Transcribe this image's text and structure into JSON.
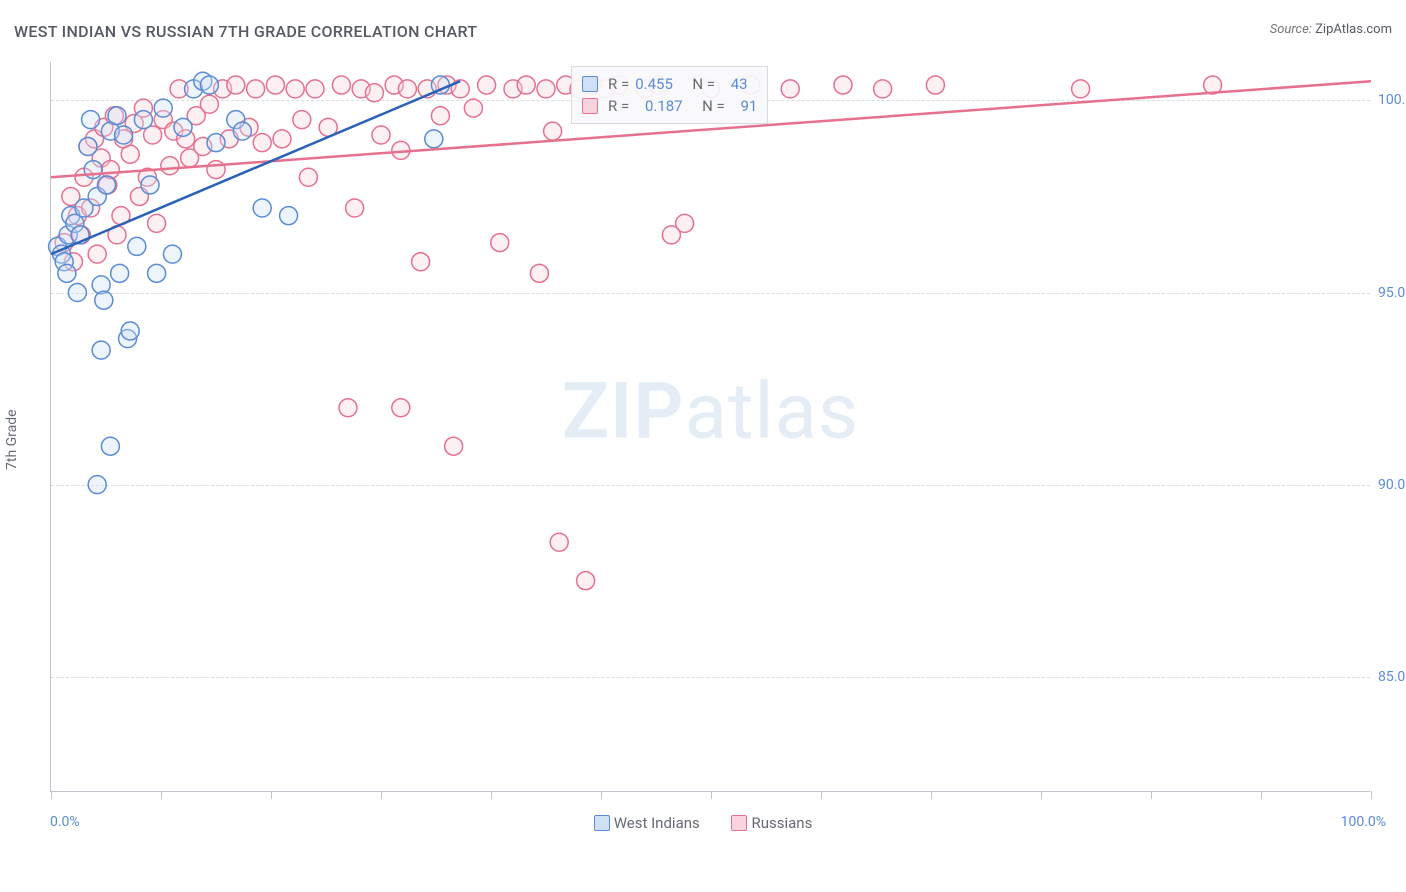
{
  "title": "WEST INDIAN VS RUSSIAN 7TH GRADE CORRELATION CHART",
  "source_label": "Source:",
  "source_value": "ZipAtlas.com",
  "ylabel": "7th Grade",
  "watermark_zip": "ZIP",
  "watermark_atlas": "atlas",
  "chart": {
    "type": "scatter",
    "background_color": "#ffffff",
    "grid_color": "#d8dbe0",
    "axis_color": "#bfc4cc",
    "xlim": [
      0,
      100
    ],
    "ylim": [
      82,
      101
    ],
    "x_tick_label_min": "0.0%",
    "x_tick_label_max": "100.0%",
    "x_tick_positions": [
      0,
      8.3,
      16.7,
      25,
      33.3,
      41.7,
      50,
      58.3,
      66.7,
      75,
      83.3,
      91.7,
      100
    ],
    "y_ticks": [
      {
        "value": 85,
        "label": "85.0%"
      },
      {
        "value": 90,
        "label": "90.0%"
      },
      {
        "value": 95,
        "label": "95.0%"
      },
      {
        "value": 100,
        "label": "100.0%"
      }
    ],
    "marker_radius": 9,
    "marker_fill_opacity": 0.35,
    "marker_stroke_width": 1.5,
    "trend_line_width": 2.5,
    "series": {
      "west_indian": {
        "label": "West Indians",
        "color_fill": "#cfe0f6",
        "color_stroke": "#5a8cd6",
        "trend_color": "#2a62b8",
        "r_value": "0.455",
        "n_value": "43",
        "trend": {
          "x1": 0,
          "y1": 96.0,
          "x2": 31,
          "y2": 100.5
        },
        "points": [
          [
            0.5,
            96.2
          ],
          [
            0.8,
            96.0
          ],
          [
            1.0,
            95.8
          ],
          [
            1.2,
            95.5
          ],
          [
            1.3,
            96.5
          ],
          [
            1.5,
            97.0
          ],
          [
            1.8,
            96.8
          ],
          [
            2.0,
            95.0
          ],
          [
            2.2,
            96.5
          ],
          [
            2.5,
            97.2
          ],
          [
            2.8,
            98.8
          ],
          [
            3.0,
            99.5
          ],
          [
            3.2,
            98.2
          ],
          [
            3.5,
            97.5
          ],
          [
            3.8,
            95.2
          ],
          [
            4.0,
            94.8
          ],
          [
            4.2,
            97.8
          ],
          [
            4.5,
            99.2
          ],
          [
            5.0,
            99.6
          ],
          [
            5.2,
            95.5
          ],
          [
            5.5,
            99.1
          ],
          [
            5.8,
            93.8
          ],
          [
            6.0,
            94.0
          ],
          [
            6.5,
            96.2
          ],
          [
            7.0,
            99.5
          ],
          [
            7.5,
            97.8
          ],
          [
            8.0,
            95.5
          ],
          [
            8.5,
            99.8
          ],
          [
            3.8,
            93.5
          ],
          [
            9.2,
            96.0
          ],
          [
            10.0,
            99.3
          ],
          [
            10.8,
            100.3
          ],
          [
            11.5,
            100.5
          ],
          [
            12.5,
            98.9
          ],
          [
            12.0,
            100.4
          ],
          [
            14.0,
            99.5
          ],
          [
            14.5,
            99.2
          ],
          [
            16.0,
            97.2
          ],
          [
            18.0,
            97.0
          ],
          [
            4.5,
            91.0
          ],
          [
            3.5,
            90.0
          ],
          [
            29.0,
            99.0
          ],
          [
            29.5,
            100.4
          ]
        ]
      },
      "russian": {
        "label": "Russians",
        "color_fill": "#f9d4de",
        "color_stroke": "#e6718f",
        "trend_color": "#e6718f",
        "r_value": "0.187",
        "n_value": "91",
        "trend": {
          "x1": 0,
          "y1": 98.0,
          "x2": 100,
          "y2": 100.5
        },
        "points": [
          [
            1.0,
            96.3
          ],
          [
            1.5,
            97.5
          ],
          [
            1.7,
            95.8
          ],
          [
            2.0,
            97.0
          ],
          [
            2.3,
            96.5
          ],
          [
            2.5,
            98.0
          ],
          [
            2.8,
            98.8
          ],
          [
            3.0,
            97.2
          ],
          [
            3.3,
            99.0
          ],
          [
            3.5,
            96.0
          ],
          [
            3.8,
            98.5
          ],
          [
            4.0,
            99.3
          ],
          [
            4.3,
            97.8
          ],
          [
            4.5,
            98.2
          ],
          [
            4.8,
            99.6
          ],
          [
            5.0,
            96.5
          ],
          [
            5.3,
            97.0
          ],
          [
            5.5,
            99.0
          ],
          [
            6.0,
            98.6
          ],
          [
            6.3,
            99.4
          ],
          [
            6.7,
            97.5
          ],
          [
            7.0,
            99.8
          ],
          [
            7.3,
            98.0
          ],
          [
            7.7,
            99.1
          ],
          [
            8.0,
            96.8
          ],
          [
            8.5,
            99.5
          ],
          [
            9.0,
            98.3
          ],
          [
            9.3,
            99.2
          ],
          [
            9.7,
            100.3
          ],
          [
            10.2,
            99.0
          ],
          [
            10.5,
            98.5
          ],
          [
            11.0,
            99.6
          ],
          [
            11.5,
            98.8
          ],
          [
            12.0,
            99.9
          ],
          [
            12.5,
            98.2
          ],
          [
            13.0,
            100.3
          ],
          [
            13.5,
            99.0
          ],
          [
            14.0,
            100.4
          ],
          [
            15.0,
            99.3
          ],
          [
            15.5,
            100.3
          ],
          [
            16.0,
            98.9
          ],
          [
            17.0,
            100.4
          ],
          [
            17.5,
            99.0
          ],
          [
            18.5,
            100.3
          ],
          [
            19.0,
            99.5
          ],
          [
            19.5,
            98.0
          ],
          [
            20.0,
            100.3
          ],
          [
            21.0,
            99.3
          ],
          [
            22.0,
            100.4
          ],
          [
            23.0,
            97.2
          ],
          [
            23.5,
            100.3
          ],
          [
            24.5,
            100.2
          ],
          [
            25.0,
            99.1
          ],
          [
            26.0,
            100.4
          ],
          [
            26.5,
            98.7
          ],
          [
            27.0,
            100.3
          ],
          [
            28.0,
            95.8
          ],
          [
            28.5,
            100.3
          ],
          [
            29.5,
            99.6
          ],
          [
            30.0,
            100.4
          ],
          [
            31.0,
            100.3
          ],
          [
            32.0,
            99.8
          ],
          [
            33.0,
            100.4
          ],
          [
            34.0,
            96.3
          ],
          [
            35.0,
            100.3
          ],
          [
            36.0,
            100.4
          ],
          [
            37.0,
            95.5
          ],
          [
            37.5,
            100.3
          ],
          [
            38.0,
            99.2
          ],
          [
            39.0,
            100.4
          ],
          [
            40.0,
            100.3
          ],
          [
            41.0,
            100.4
          ],
          [
            42.0,
            100.3
          ],
          [
            43.0,
            100.4
          ],
          [
            45.0,
            100.3
          ],
          [
            46.0,
            100.4
          ],
          [
            47.0,
            96.5
          ],
          [
            22.5,
            92.0
          ],
          [
            26.5,
            92.0
          ],
          [
            30.5,
            91.0
          ],
          [
            38.5,
            88.5
          ],
          [
            40.5,
            87.5
          ],
          [
            48.0,
            96.8
          ],
          [
            50.0,
            100.3
          ],
          [
            53.0,
            100.4
          ],
          [
            56.0,
            100.3
          ],
          [
            60.0,
            100.4
          ],
          [
            63.0,
            100.3
          ],
          [
            67.0,
            100.4
          ],
          [
            78.0,
            100.3
          ],
          [
            88.0,
            100.4
          ]
        ]
      }
    }
  },
  "stats_legend": {
    "r_label": "R =",
    "n_label": "N ="
  }
}
